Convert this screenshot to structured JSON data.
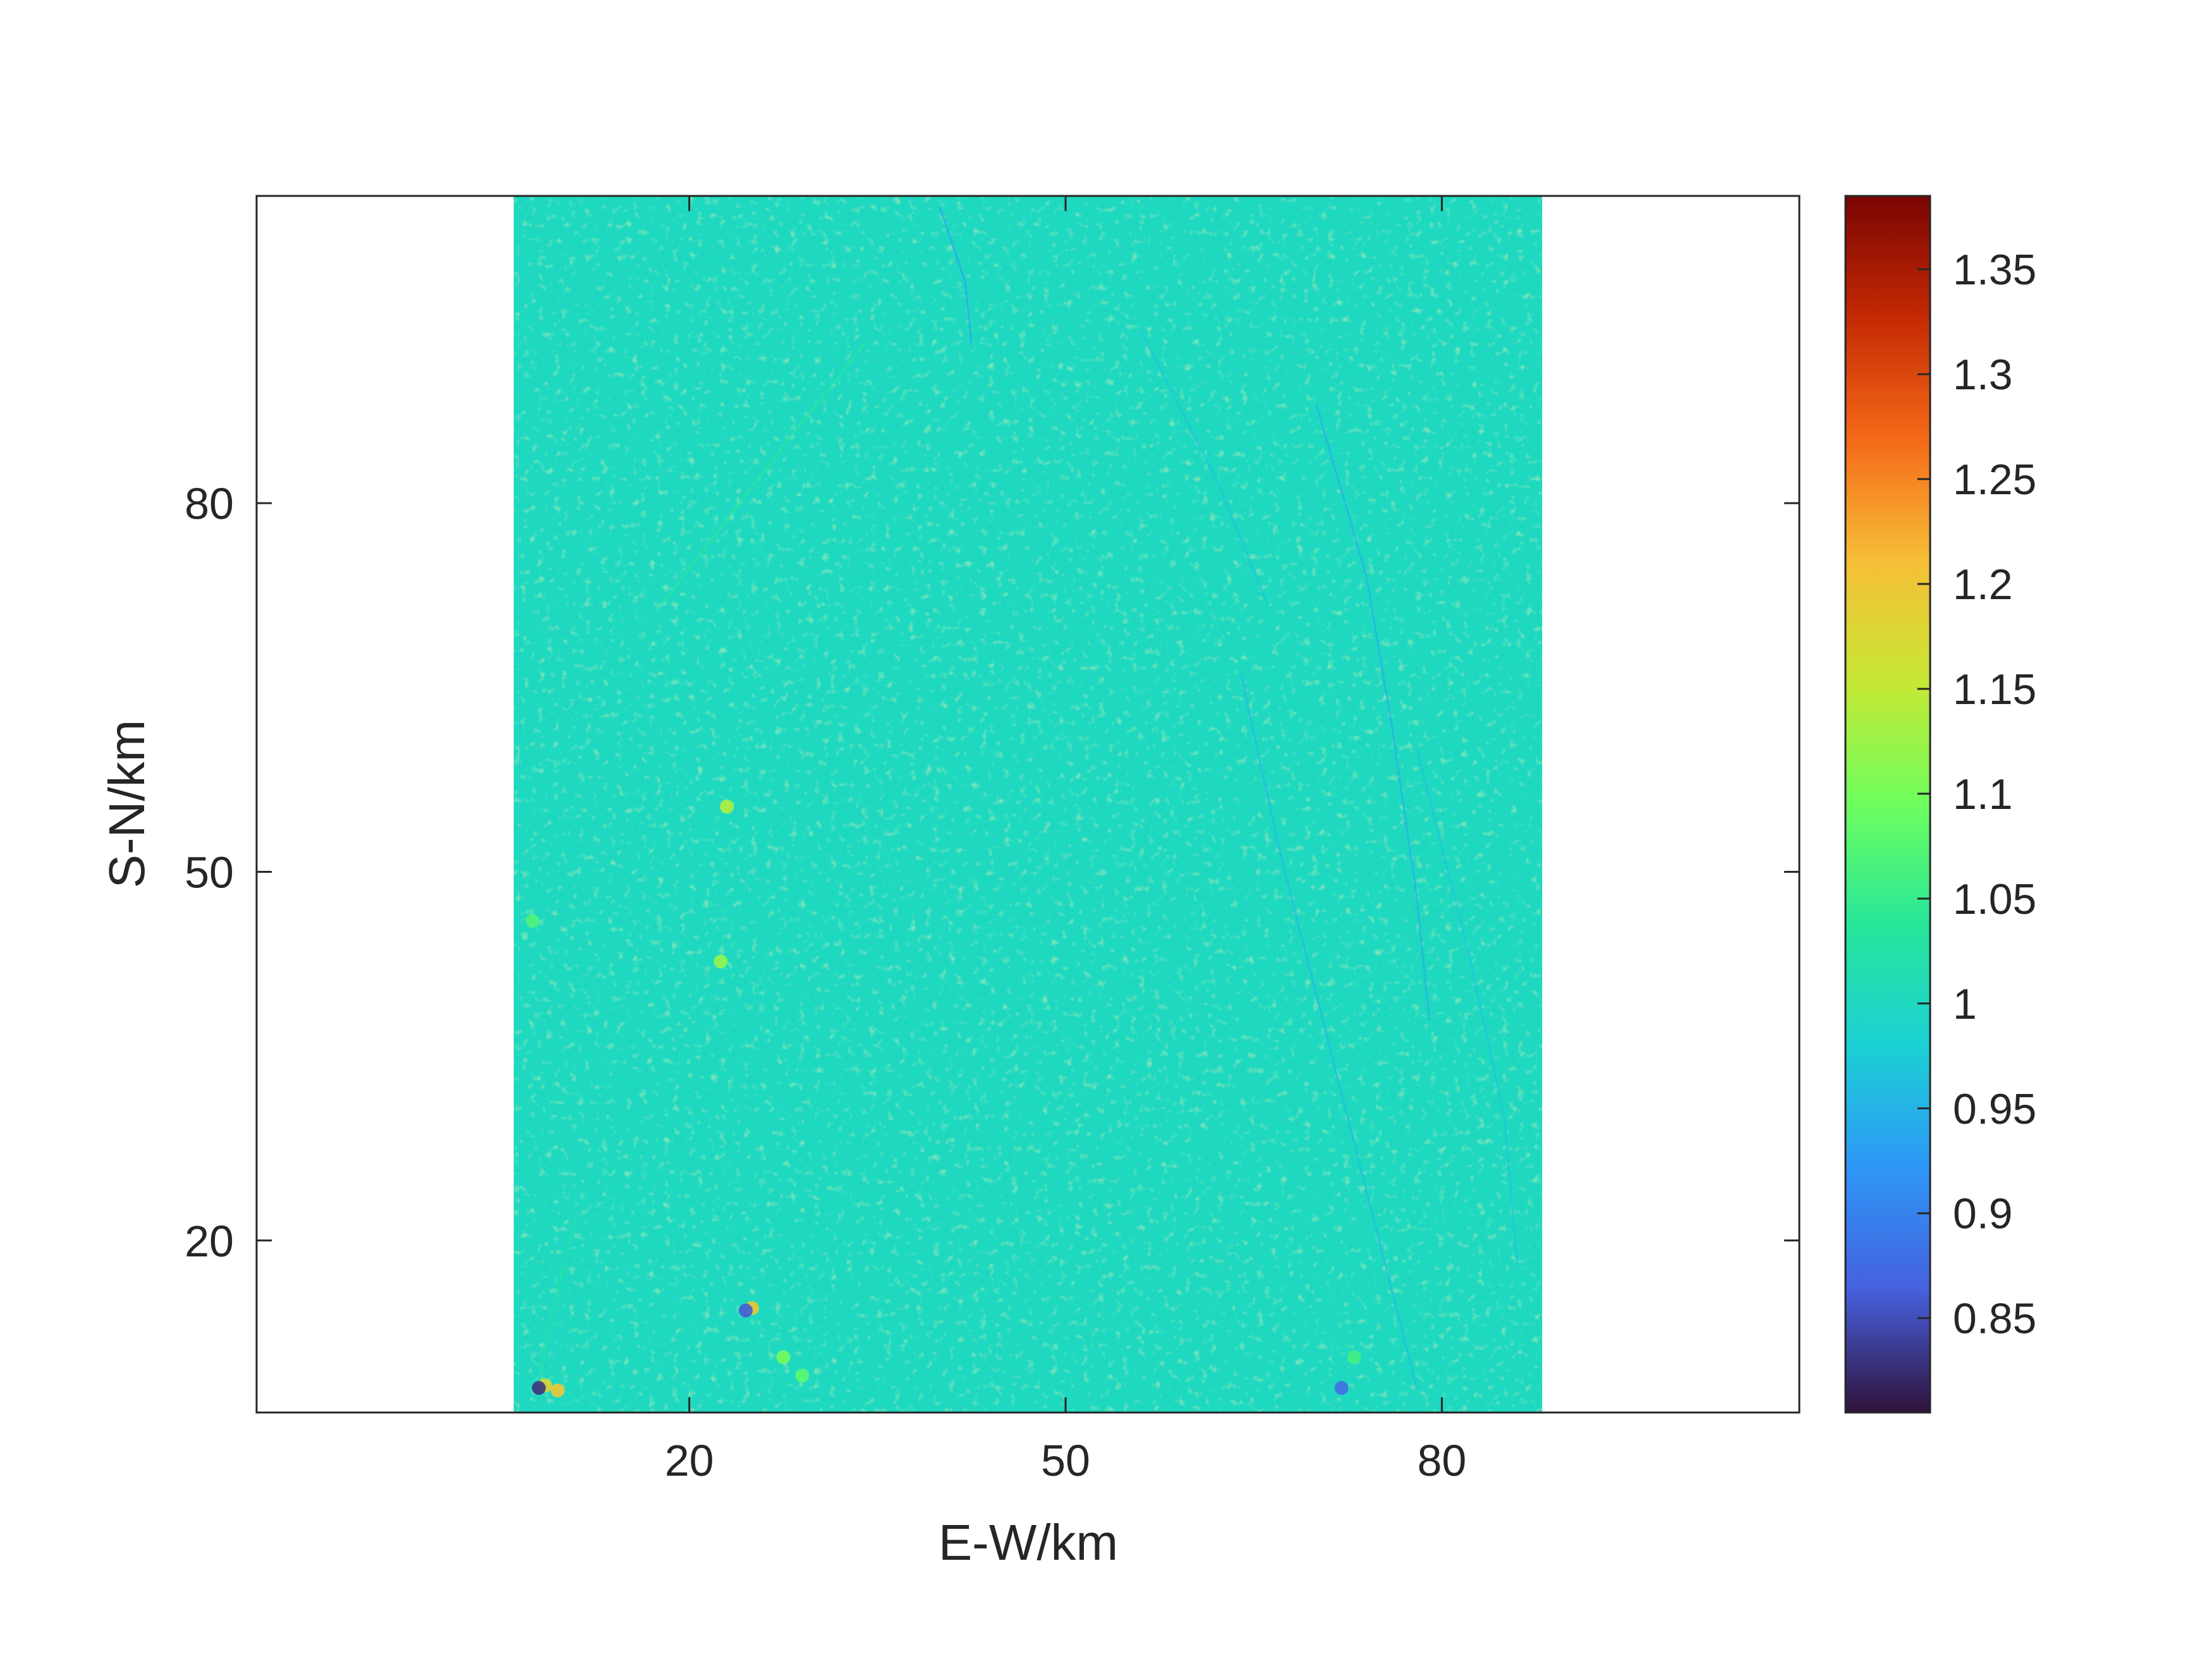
{
  "chart_data": {
    "type": "heatmap",
    "title": "",
    "xlabel": "E-W/km",
    "ylabel": "S-N/km",
    "xticks": [
      20,
      50,
      80
    ],
    "yticks": [
      20,
      50,
      80
    ],
    "xlim": [
      -14.5,
      108.5
    ],
    "ylim": [
      6,
      105
    ],
    "data_extent": {
      "x": [
        6,
        88
      ],
      "y": [
        6,
        105
      ]
    },
    "grid": false,
    "background_value": 1.0,
    "colormap": "turbo",
    "colorbar": {
      "range": [
        0.805,
        1.385
      ],
      "ticks": [
        0.85,
        0.9,
        0.95,
        1,
        1.05,
        1.1,
        1.15,
        1.2,
        1.25,
        1.3,
        1.35
      ],
      "tick_labels": [
        "0.85",
        "0.9",
        "0.95",
        "1",
        "1.05",
        "1.1",
        "1.15",
        "1.2",
        "1.25",
        "1.3",
        "1.35"
      ]
    },
    "features": [
      {
        "kind": "lineament",
        "points": [
          [
            40,
            104
          ],
          [
            42,
            98
          ],
          [
            42.5,
            93
          ]
        ],
        "value": 0.94
      },
      {
        "kind": "lineament",
        "points": [
          [
            34,
            93
          ],
          [
            27,
            84
          ],
          [
            18,
            72
          ]
        ],
        "value": 1.04
      },
      {
        "kind": "lineament",
        "points": [
          [
            56,
            94
          ],
          [
            62,
            82
          ],
          [
            66,
            72
          ]
        ],
        "value": 0.97
      },
      {
        "kind": "lineament",
        "points": [
          [
            70,
            88
          ],
          [
            74,
            74
          ],
          [
            76,
            62
          ],
          [
            78,
            48
          ],
          [
            79,
            38
          ]
        ],
        "value": 0.95
      },
      {
        "kind": "lineament",
        "points": [
          [
            64,
            66
          ],
          [
            67,
            52
          ],
          [
            70,
            40
          ],
          [
            73,
            28
          ],
          [
            76,
            16
          ],
          [
            78,
            8
          ]
        ],
        "value": 0.96
      },
      {
        "kind": "lineament",
        "points": [
          [
            78,
            60
          ],
          [
            82,
            44
          ],
          [
            85,
            30
          ],
          [
            86,
            18
          ]
        ],
        "value": 0.97
      },
      {
        "kind": "lineament",
        "points": [
          [
            11,
            22
          ],
          [
            9,
            14
          ],
          [
            8,
            8
          ]
        ],
        "value": 1.03
      },
      {
        "kind": "anomaly",
        "x": 8.5,
        "y": 8.2,
        "value": 1.18
      },
      {
        "kind": "anomaly",
        "x": 8.0,
        "y": 8.0,
        "value": 0.83
      },
      {
        "kind": "anomaly",
        "x": 9.5,
        "y": 7.8,
        "value": 1.2
      },
      {
        "kind": "anomaly",
        "x": 25.0,
        "y": 14.5,
        "value": 1.2
      },
      {
        "kind": "anomaly",
        "x": 24.5,
        "y": 14.3,
        "value": 0.86
      },
      {
        "kind": "anomaly",
        "x": 27.5,
        "y": 10.5,
        "value": 1.1
      },
      {
        "kind": "anomaly",
        "x": 29.0,
        "y": 9.0,
        "value": 1.08
      },
      {
        "kind": "anomaly",
        "x": 23.0,
        "y": 55.3,
        "value": 1.14
      },
      {
        "kind": "anomaly",
        "x": 22.5,
        "y": 42.7,
        "value": 1.12
      },
      {
        "kind": "anomaly",
        "x": 7.5,
        "y": 46.0,
        "value": 1.07
      },
      {
        "kind": "anomaly",
        "x": 72.0,
        "y": 8.0,
        "value": 0.88
      },
      {
        "kind": "anomaly",
        "x": 73.0,
        "y": 10.5,
        "value": 1.06
      }
    ]
  }
}
